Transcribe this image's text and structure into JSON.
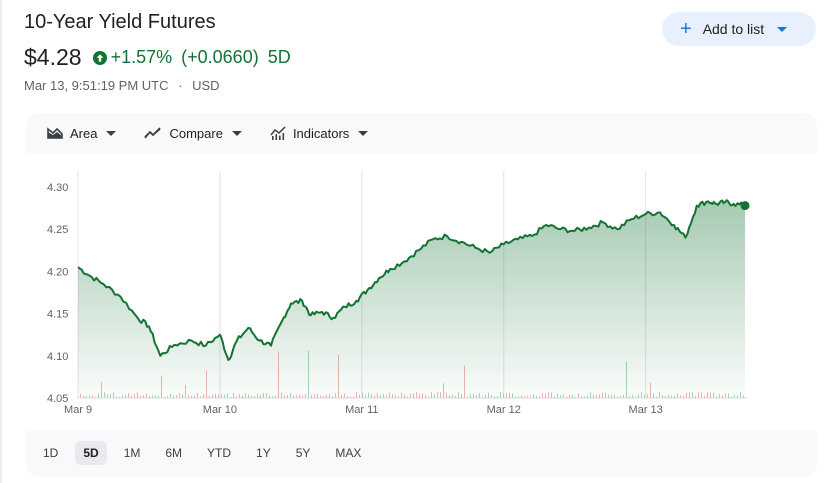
{
  "header": {
    "title": "10-Year Yield Futures",
    "add_to_list": "Add to list",
    "price": "$4.28",
    "change_pct": "+1.57%",
    "change_abs": "(+0.0660)",
    "period": "5D",
    "timestamp": "Mar 13, 9:51:19 PM UTC",
    "currency": "USD"
  },
  "toolbar": {
    "area": "Area",
    "compare": "Compare",
    "indicators": "Indicators"
  },
  "ranges": [
    "1D",
    "5D",
    "1M",
    "6M",
    "YTD",
    "1Y",
    "5Y",
    "MAX"
  ],
  "active_range": "5D",
  "colors": {
    "up": "#137333",
    "accent": "#1a73e8"
  },
  "chart_data": {
    "type": "area",
    "y_ticks": [
      "4.30",
      "4.25",
      "4.20",
      "4.15",
      "4.10",
      "4.05"
    ],
    "y_range": [
      4.05,
      4.3
    ],
    "x_ticks": [
      "Mar 9",
      "Mar 10",
      "Mar 11",
      "Mar 12",
      "Mar 13"
    ],
    "series": [
      {
        "x": [
          0,
          0.08,
          0.18,
          0.3,
          0.42,
          0.5,
          0.58,
          0.68,
          0.8,
          0.9,
          1.0,
          1.06,
          1.12,
          1.2,
          1.28,
          1.36,
          1.44,
          1.5,
          1.58,
          1.64,
          1.72,
          1.8,
          1.88,
          1.96,
          2.04,
          2.12,
          2.2,
          2.3,
          2.4,
          2.5,
          2.6,
          2.7,
          2.8,
          2.9,
          3.0,
          3.1,
          3.2,
          3.3,
          3.4,
          3.5,
          3.6,
          3.7,
          3.8,
          3.9,
          4.0,
          4.1,
          4.2,
          4.28,
          4.36,
          4.44,
          4.5,
          4.56,
          4.62,
          4.7
        ],
        "values": [
          4.205,
          4.195,
          4.185,
          4.17,
          4.145,
          4.135,
          4.1,
          4.113,
          4.118,
          4.112,
          4.125,
          4.095,
          4.118,
          4.133,
          4.118,
          4.112,
          4.142,
          4.162,
          4.165,
          4.148,
          4.152,
          4.145,
          4.158,
          4.165,
          4.178,
          4.192,
          4.203,
          4.212,
          4.225,
          4.238,
          4.242,
          4.235,
          4.228,
          4.222,
          4.232,
          4.238,
          4.242,
          4.255,
          4.25,
          4.248,
          4.252,
          4.258,
          4.25,
          4.262,
          4.268,
          4.27,
          4.255,
          4.24,
          4.278,
          4.283,
          4.28,
          4.282,
          4.28,
          4.278
        ]
      }
    ],
    "volume_note": ""
  }
}
